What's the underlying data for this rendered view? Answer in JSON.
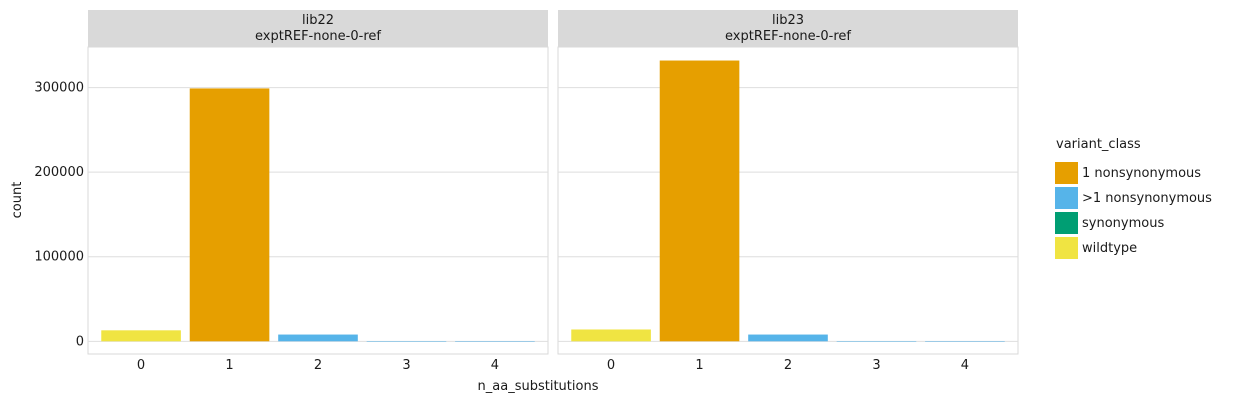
{
  "chart_data": {
    "type": "bar",
    "facets": [
      {
        "strip": [
          "lib22",
          "exptREF-none-0-ref"
        ],
        "bars": [
          {
            "x": 0,
            "value": 13000,
            "variant_class": "wildtype"
          },
          {
            "x": 1,
            "value": 299000,
            "variant_class": "1 nonsynonymous"
          },
          {
            "x": 2,
            "value": 8000,
            "variant_class": ">1 nonsynonymous"
          },
          {
            "x": 3,
            "value": 300,
            "variant_class": ">1 nonsynonymous"
          },
          {
            "x": 4,
            "value": 50,
            "variant_class": ">1 nonsynonymous"
          }
        ]
      },
      {
        "strip": [
          "lib23",
          "exptREF-none-0-ref"
        ],
        "bars": [
          {
            "x": 0,
            "value": 14000,
            "variant_class": "wildtype"
          },
          {
            "x": 1,
            "value": 332000,
            "variant_class": "1 nonsynonymous"
          },
          {
            "x": 2,
            "value": 8000,
            "variant_class": ">1 nonsynonymous"
          },
          {
            "x": 3,
            "value": 300,
            "variant_class": ">1 nonsynonymous"
          },
          {
            "x": 4,
            "value": 50,
            "variant_class": ">1 nonsynonymous"
          }
        ]
      }
    ],
    "categories": [
      0,
      1,
      2,
      3,
      4
    ],
    "x_tick_labels": [
      "0",
      "1",
      "2",
      "3",
      "4"
    ],
    "y_ticks": [
      0,
      100000,
      200000,
      300000
    ],
    "y_tick_labels": [
      "0",
      "100000",
      "200000",
      "300000"
    ],
    "ylim": [
      -15000,
      348000
    ],
    "xlabel": "n_aa_substitutions",
    "ylabel": "count",
    "grid": true,
    "legend": {
      "title": "variant_class",
      "placement": "right",
      "items": [
        {
          "label": "1 nonsynonymous",
          "color": "#E69F00"
        },
        {
          "label": ">1 nonsynonymous",
          "color": "#56B4E9"
        },
        {
          "label": "synonymous",
          "color": "#009E73"
        },
        {
          "label": "wildtype",
          "color": "#F0E442"
        }
      ]
    }
  }
}
